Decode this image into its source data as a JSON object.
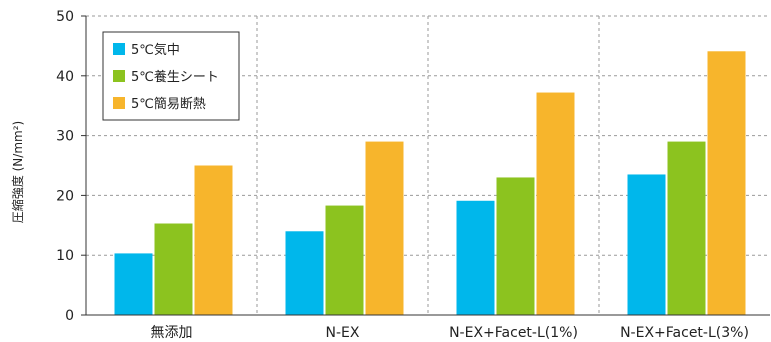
{
  "chart_data": {
    "type": "bar",
    "title": "",
    "xlabel": "",
    "ylabel": "圧縮強度 (N/mm²)",
    "ylim": [
      0,
      50
    ],
    "yticks": [
      0,
      10,
      20,
      30,
      40,
      50
    ],
    "grid": true,
    "legend_position": "top-left",
    "categories": [
      "無添加",
      "N-EX",
      "N-EX+Facet-L(1%)",
      "N-EX+Facet-L(3%)"
    ],
    "series": [
      {
        "name": "5℃気中",
        "color": "#00b7eb",
        "values": [
          10.3,
          14.0,
          19.1,
          23.5
        ]
      },
      {
        "name": "5℃養生シート",
        "color": "#8cc31f",
        "values": [
          15.3,
          18.3,
          23.0,
          29.0
        ]
      },
      {
        "name": "5℃簡易断熱",
        "color": "#f7b52c",
        "values": [
          25.0,
          29.0,
          37.2,
          44.1
        ]
      }
    ]
  }
}
